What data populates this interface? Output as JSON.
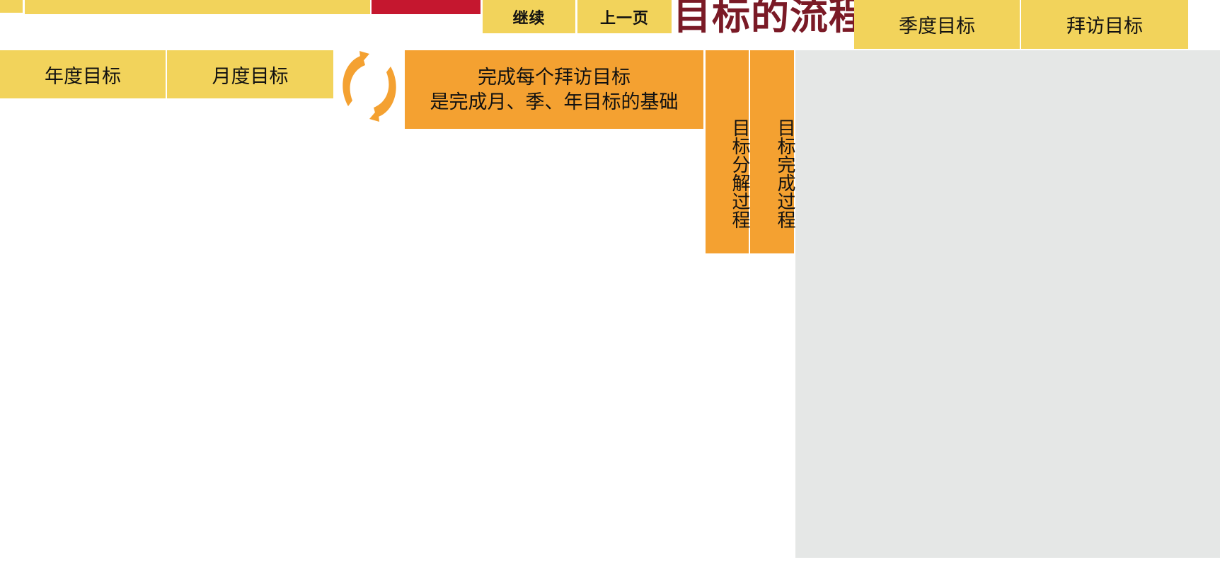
{
  "nav": {
    "continue_label": "继续",
    "prev_label": "上一页"
  },
  "title": "目标的流程",
  "goals": {
    "annual": "年度目标",
    "monthly": "月度目标",
    "quarterly": "季度目标",
    "visit": "拜访目标"
  },
  "callout": {
    "line1": "完成每个拜访目标",
    "line2": "是完成月、季、年目标的基础"
  },
  "process": {
    "decomposition": "目标分解过程",
    "completion": "目标完成过程"
  },
  "colors": {
    "yellow": "#f2d35b",
    "red": "#c5172f",
    "orange": "#f4a131",
    "title": "#7a1a26",
    "grey": "#e5e7e6"
  },
  "icons": {
    "cycle": "refresh-cycle-icon"
  }
}
